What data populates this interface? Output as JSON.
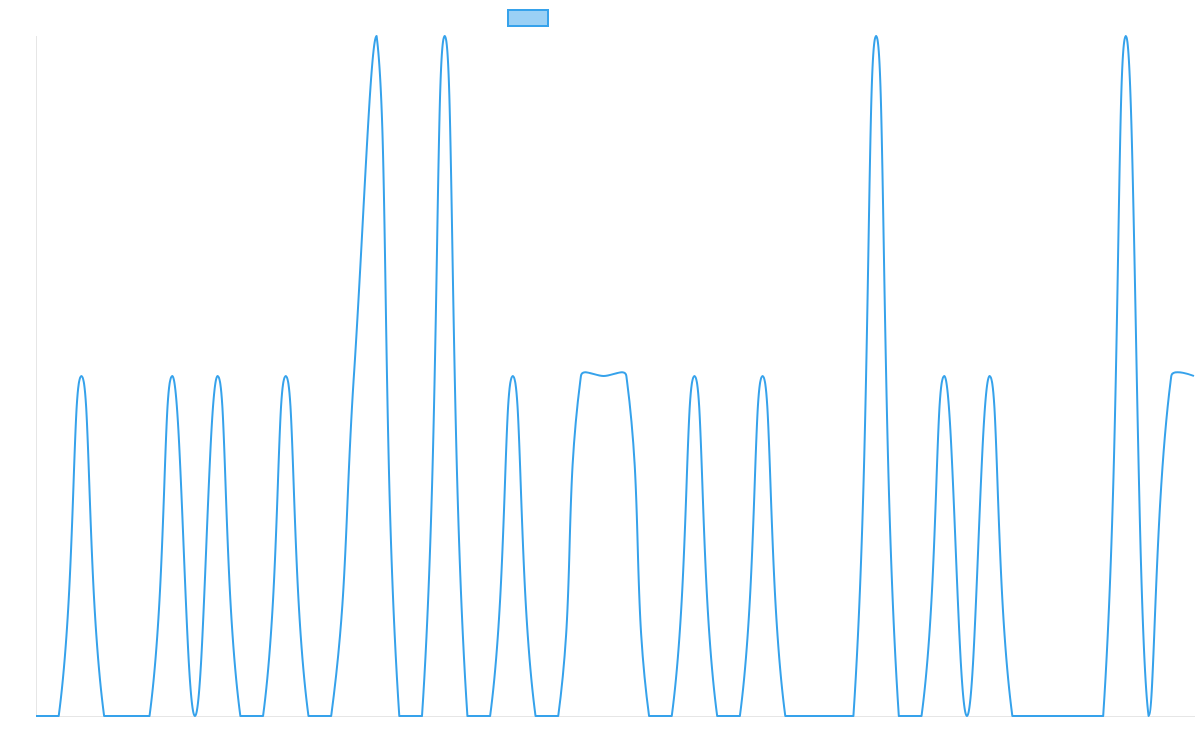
{
  "chart_data": {
    "type": "line",
    "title": "",
    "xlabel": "",
    "ylabel": "",
    "grid": false,
    "legend_position": "top-center",
    "ylim": [
      0,
      2
    ],
    "x": [
      0,
      1,
      2,
      3,
      4,
      5,
      6,
      7,
      8,
      9,
      10,
      11,
      12,
      13,
      14,
      15,
      16,
      17,
      18,
      19,
      20,
      21,
      22,
      23,
      24,
      25,
      26,
      27,
      28,
      29,
      30,
      31,
      32,
      33,
      34,
      35,
      36,
      37,
      38,
      39,
      40,
      41,
      42,
      43,
      44,
      45,
      46,
      47,
      48,
      49,
      50,
      51
    ],
    "series": [
      {
        "name": "",
        "color": "#36a2eb",
        "fill_color": "#9ad0f5",
        "values": [
          0,
          0,
          1,
          0,
          0,
          0,
          1,
          0,
          1,
          0,
          0,
          1,
          0,
          0,
          1,
          2,
          0,
          0,
          2,
          0,
          0,
          1,
          0,
          0,
          1,
          1,
          1,
          0,
          0,
          1,
          0,
          0,
          1,
          0,
          0,
          0,
          0,
          2,
          0,
          0,
          1,
          0,
          1,
          0,
          0,
          0,
          0,
          0,
          2,
          0,
          1,
          1
        ]
      }
    ]
  }
}
